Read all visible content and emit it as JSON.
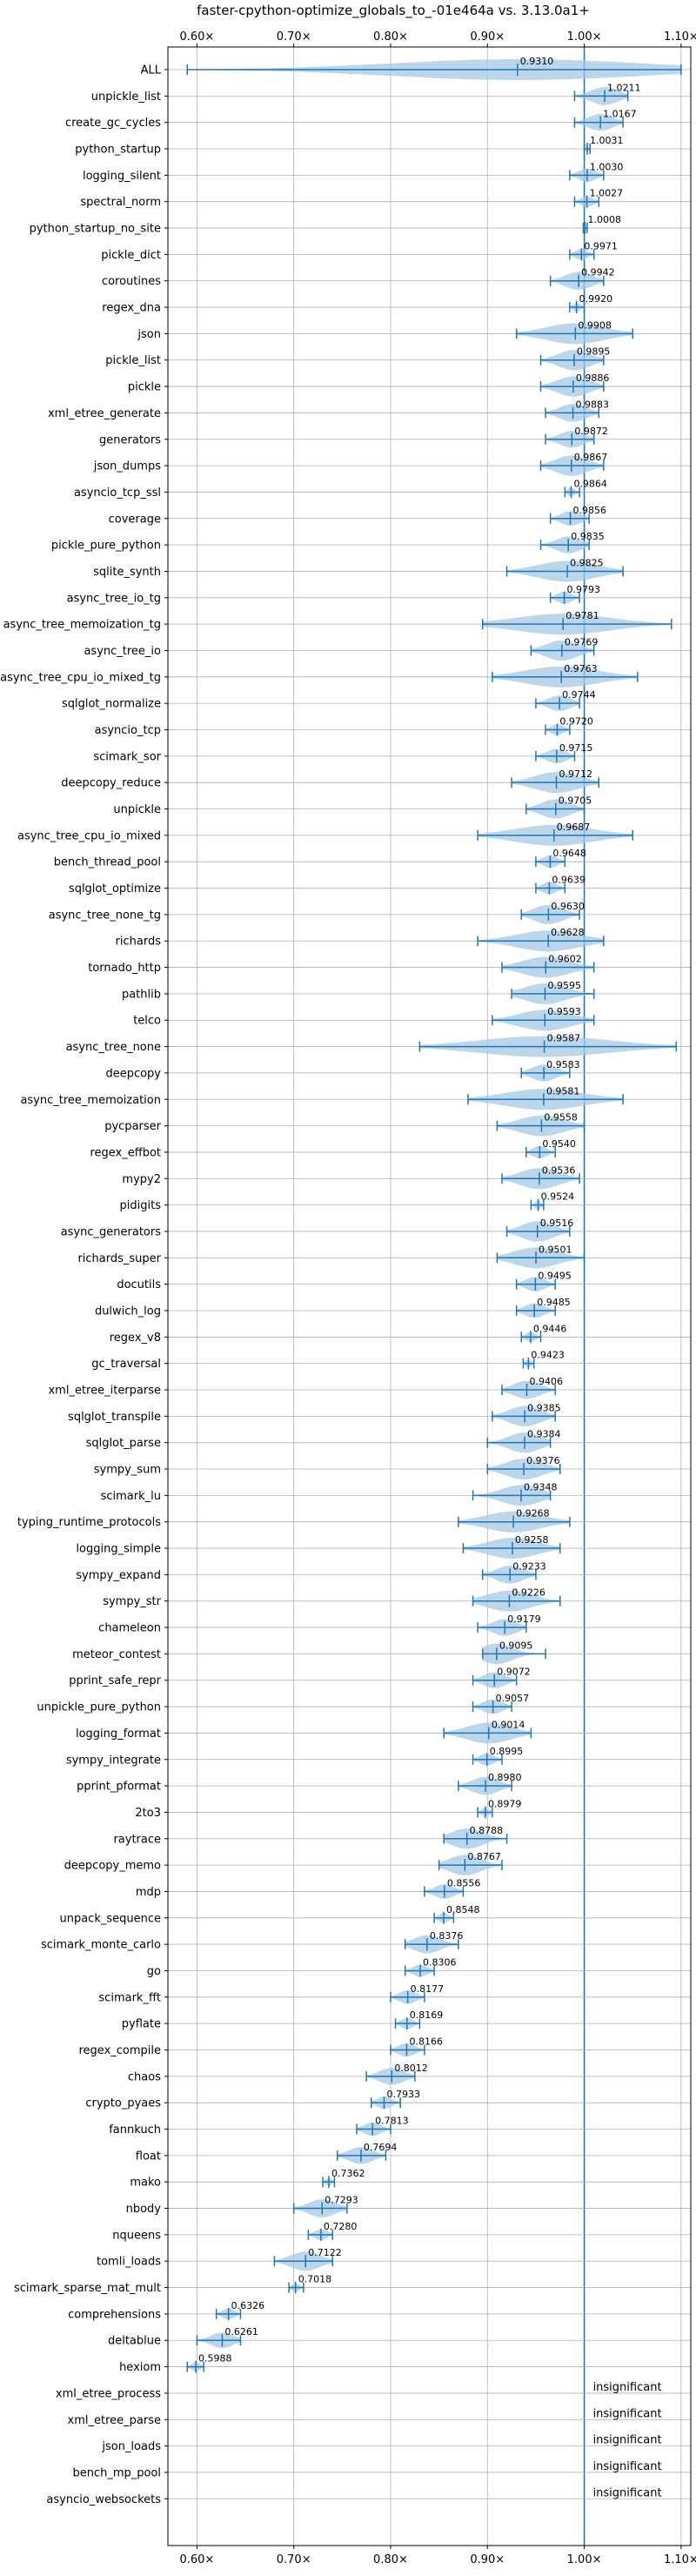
{
  "chart_data": {
    "type": "violin",
    "title": "faster-cpython-optimize_globals_to_-01e464a vs. 3.13.0a1+",
    "xlim": [
      0.57,
      1.11
    ],
    "xticks": [
      0.6,
      0.7,
      0.8,
      0.9,
      1.0,
      1.1
    ],
    "xtick_labels": [
      "0.60×",
      "0.70×",
      "0.80×",
      "0.90×",
      "1.00×",
      "1.10×"
    ],
    "reference_line": 1.0,
    "grid": true,
    "color": "#1f77b4",
    "fill_color": "#a6c8e6",
    "insignificant_label": "insignificant",
    "benchmarks": [
      {
        "name": "ALL",
        "value": 0.931,
        "label": "0.9310",
        "min": 0.59,
        "max": 1.1,
        "spread": 0.035
      },
      {
        "name": "unpickle_list",
        "value": 1.0211,
        "label": "1.0211",
        "min": 0.99,
        "max": 1.045,
        "spread": 0.025
      },
      {
        "name": "create_gc_cycles",
        "value": 1.0167,
        "label": "1.0167",
        "min": 0.99,
        "max": 1.04,
        "spread": 0.025
      },
      {
        "name": "python_startup",
        "value": 1.0031,
        "label": "1.0031",
        "min": 1.0,
        "max": 1.006,
        "spread": 0.004
      },
      {
        "name": "logging_silent",
        "value": 1.003,
        "label": "1.0030",
        "min": 0.985,
        "max": 1.02,
        "spread": 0.015
      },
      {
        "name": "spectral_norm",
        "value": 1.0027,
        "label": "1.0027",
        "min": 0.99,
        "max": 1.015,
        "spread": 0.013
      },
      {
        "name": "python_startup_no_site",
        "value": 1.0008,
        "label": "1.0008",
        "min": 0.999,
        "max": 1.003,
        "spread": 0.003
      },
      {
        "name": "pickle_dict",
        "value": 0.9971,
        "label": "0.9971",
        "min": 0.985,
        "max": 1.01,
        "spread": 0.012
      },
      {
        "name": "coroutines",
        "value": 0.9942,
        "label": "0.9942",
        "min": 0.965,
        "max": 1.02,
        "spread": 0.02
      },
      {
        "name": "regex_dna",
        "value": 0.992,
        "label": "0.9920",
        "min": 0.985,
        "max": 1.0,
        "spread": 0.008
      },
      {
        "name": "json",
        "value": 0.9908,
        "label": "0.9908",
        "min": 0.93,
        "max": 1.05,
        "spread": 0.035
      },
      {
        "name": "pickle_list",
        "value": 0.9895,
        "label": "0.9895",
        "min": 0.955,
        "max": 1.02,
        "spread": 0.025
      },
      {
        "name": "pickle",
        "value": 0.9886,
        "label": "0.9886",
        "min": 0.955,
        "max": 1.02,
        "spread": 0.025
      },
      {
        "name": "xml_etree_generate",
        "value": 0.9883,
        "label": "0.9883",
        "min": 0.96,
        "max": 1.015,
        "spread": 0.02
      },
      {
        "name": "generators",
        "value": 0.9872,
        "label": "0.9872",
        "min": 0.96,
        "max": 1.01,
        "spread": 0.02
      },
      {
        "name": "json_dumps",
        "value": 0.9867,
        "label": "0.9867",
        "min": 0.955,
        "max": 1.02,
        "spread": 0.025
      },
      {
        "name": "asyncio_tcp_ssl",
        "value": 0.9864,
        "label": "0.9864",
        "min": 0.98,
        "max": 0.995,
        "spread": 0.008
      },
      {
        "name": "coverage",
        "value": 0.9856,
        "label": "0.9856",
        "min": 0.965,
        "max": 1.005,
        "spread": 0.02
      },
      {
        "name": "pickle_pure_python",
        "value": 0.9835,
        "label": "0.9835",
        "min": 0.955,
        "max": 1.005,
        "spread": 0.02
      },
      {
        "name": "sqlite_synth",
        "value": 0.9825,
        "label": "0.9825",
        "min": 0.92,
        "max": 1.04,
        "spread": 0.035
      },
      {
        "name": "async_tree_io_tg",
        "value": 0.9793,
        "label": "0.9793",
        "min": 0.965,
        "max": 0.995,
        "spread": 0.012
      },
      {
        "name": "async_tree_memoization_tg",
        "value": 0.9781,
        "label": "0.9781",
        "min": 0.895,
        "max": 1.09,
        "spread": 0.045
      },
      {
        "name": "async_tree_io",
        "value": 0.9769,
        "label": "0.9769",
        "min": 0.945,
        "max": 1.01,
        "spread": 0.025
      },
      {
        "name": "async_tree_cpu_io_mixed_tg",
        "value": 0.9763,
        "label": "0.9763",
        "min": 0.905,
        "max": 1.055,
        "spread": 0.04
      },
      {
        "name": "sqlglot_normalize",
        "value": 0.9744,
        "label": "0.9744",
        "min": 0.95,
        "max": 0.995,
        "spread": 0.02
      },
      {
        "name": "asyncio_tcp",
        "value": 0.972,
        "label": "0.9720",
        "min": 0.96,
        "max": 0.985,
        "spread": 0.012
      },
      {
        "name": "scimark_sor",
        "value": 0.9715,
        "label": "0.9715",
        "min": 0.95,
        "max": 0.99,
        "spread": 0.018
      },
      {
        "name": "deepcopy_reduce",
        "value": 0.9712,
        "label": "0.9712",
        "min": 0.925,
        "max": 1.015,
        "spread": 0.03
      },
      {
        "name": "unpickle",
        "value": 0.9705,
        "label": "0.9705",
        "min": 0.94,
        "max": 1.0,
        "spread": 0.025
      },
      {
        "name": "async_tree_cpu_io_mixed",
        "value": 0.9687,
        "label": "0.9687",
        "min": 0.89,
        "max": 1.05,
        "spread": 0.04
      },
      {
        "name": "bench_thread_pool",
        "value": 0.9648,
        "label": "0.9648",
        "min": 0.95,
        "max": 0.98,
        "spread": 0.014
      },
      {
        "name": "sqlglot_optimize",
        "value": 0.9639,
        "label": "0.9639",
        "min": 0.95,
        "max": 0.98,
        "spread": 0.014
      },
      {
        "name": "async_tree_none_tg",
        "value": 0.963,
        "label": "0.9630",
        "min": 0.935,
        "max": 0.995,
        "spread": 0.022
      },
      {
        "name": "richards",
        "value": 0.9628,
        "label": "0.9628",
        "min": 0.89,
        "max": 1.02,
        "spread": 0.035
      },
      {
        "name": "tornado_http",
        "value": 0.9602,
        "label": "0.9602",
        "min": 0.915,
        "max": 1.01,
        "spread": 0.028
      },
      {
        "name": "pathlib",
        "value": 0.9595,
        "label": "0.9595",
        "min": 0.925,
        "max": 1.01,
        "spread": 0.025
      },
      {
        "name": "telco",
        "value": 0.9593,
        "label": "0.9593",
        "min": 0.905,
        "max": 1.01,
        "spread": 0.03
      },
      {
        "name": "async_tree_none",
        "value": 0.9587,
        "label": "0.9587",
        "min": 0.83,
        "max": 1.095,
        "spread": 0.05
      },
      {
        "name": "deepcopy",
        "value": 0.9583,
        "label": "0.9583",
        "min": 0.935,
        "max": 0.985,
        "spread": 0.018
      },
      {
        "name": "async_tree_memoization",
        "value": 0.9581,
        "label": "0.9581",
        "min": 0.88,
        "max": 1.04,
        "spread": 0.04
      },
      {
        "name": "pycparser",
        "value": 0.9558,
        "label": "0.9558",
        "min": 0.91,
        "max": 1.0,
        "spread": 0.028
      },
      {
        "name": "regex_effbot",
        "value": 0.954,
        "label": "0.9540",
        "min": 0.94,
        "max": 0.97,
        "spread": 0.012
      },
      {
        "name": "mypy2",
        "value": 0.9536,
        "label": "0.9536",
        "min": 0.915,
        "max": 0.995,
        "spread": 0.025
      },
      {
        "name": "pidigits",
        "value": 0.9524,
        "label": "0.9524",
        "min": 0.945,
        "max": 0.958,
        "spread": 0.006
      },
      {
        "name": "async_generators",
        "value": 0.9516,
        "label": "0.9516",
        "min": 0.92,
        "max": 0.985,
        "spread": 0.022
      },
      {
        "name": "richards_super",
        "value": 0.9501,
        "label": "0.9501",
        "min": 0.91,
        "max": 1.0,
        "spread": 0.028
      },
      {
        "name": "docutils",
        "value": 0.9495,
        "label": "0.9495",
        "min": 0.93,
        "max": 0.97,
        "spread": 0.015
      },
      {
        "name": "dulwich_log",
        "value": 0.9485,
        "label": "0.9485",
        "min": 0.93,
        "max": 0.97,
        "spread": 0.015
      },
      {
        "name": "regex_v8",
        "value": 0.9446,
        "label": "0.9446",
        "min": 0.935,
        "max": 0.955,
        "spread": 0.008
      },
      {
        "name": "gc_traversal",
        "value": 0.9423,
        "label": "0.9423",
        "min": 0.937,
        "max": 0.948,
        "spread": 0.005
      },
      {
        "name": "xml_etree_iterparse",
        "value": 0.9406,
        "label": "0.9406",
        "min": 0.915,
        "max": 0.97,
        "spread": 0.02
      },
      {
        "name": "sqlglot_transpile",
        "value": 0.9385,
        "label": "0.9385",
        "min": 0.905,
        "max": 0.97,
        "spread": 0.022
      },
      {
        "name": "sqlglot_parse",
        "value": 0.9384,
        "label": "0.9384",
        "min": 0.9,
        "max": 0.965,
        "spread": 0.022
      },
      {
        "name": "sympy_sum",
        "value": 0.9376,
        "label": "0.9376",
        "min": 0.9,
        "max": 0.975,
        "spread": 0.025
      },
      {
        "name": "scimark_lu",
        "value": 0.9348,
        "label": "0.9348",
        "min": 0.885,
        "max": 0.965,
        "spread": 0.025
      },
      {
        "name": "typing_runtime_protocols",
        "value": 0.9268,
        "label": "0.9268",
        "min": 0.87,
        "max": 0.985,
        "spread": 0.032
      },
      {
        "name": "logging_simple",
        "value": 0.9258,
        "label": "0.9258",
        "min": 0.875,
        "max": 0.975,
        "spread": 0.028
      },
      {
        "name": "sympy_expand",
        "value": 0.9233,
        "label": "0.9233",
        "min": 0.895,
        "max": 0.95,
        "spread": 0.02
      },
      {
        "name": "sympy_str",
        "value": 0.9226,
        "label": "0.9226",
        "min": 0.885,
        "max": 0.975,
        "spread": 0.025
      },
      {
        "name": "chameleon",
        "value": 0.9179,
        "label": "0.9179",
        "min": 0.89,
        "max": 0.94,
        "spread": 0.018
      },
      {
        "name": "meteor_contest",
        "value": 0.9095,
        "label": "0.9095",
        "min": 0.895,
        "max": 0.96,
        "spread": 0.02
      },
      {
        "name": "pprint_safe_repr",
        "value": 0.9072,
        "label": "0.9072",
        "min": 0.885,
        "max": 0.93,
        "spread": 0.018
      },
      {
        "name": "unpickle_pure_python",
        "value": 0.9057,
        "label": "0.9057",
        "min": 0.885,
        "max": 0.925,
        "spread": 0.016
      },
      {
        "name": "logging_format",
        "value": 0.9014,
        "label": "0.9014",
        "min": 0.855,
        "max": 0.945,
        "spread": 0.028
      },
      {
        "name": "sympy_integrate",
        "value": 0.8995,
        "label": "0.8995",
        "min": 0.885,
        "max": 0.915,
        "spread": 0.012
      },
      {
        "name": "pprint_pformat",
        "value": 0.898,
        "label": "0.8980",
        "min": 0.87,
        "max": 0.925,
        "spread": 0.018
      },
      {
        "name": "2to3",
        "value": 0.8979,
        "label": "0.8979",
        "min": 0.89,
        "max": 0.905,
        "spread": 0.008
      },
      {
        "name": "raytrace",
        "value": 0.8788,
        "label": "0.8788",
        "min": 0.855,
        "max": 0.92,
        "spread": 0.022
      },
      {
        "name": "deepcopy_memo",
        "value": 0.8767,
        "label": "0.8767",
        "min": 0.85,
        "max": 0.915,
        "spread": 0.022
      },
      {
        "name": "mdp",
        "value": 0.8556,
        "label": "0.8556",
        "min": 0.835,
        "max": 0.875,
        "spread": 0.016
      },
      {
        "name": "unpack_sequence",
        "value": 0.8548,
        "label": "0.8548",
        "min": 0.845,
        "max": 0.865,
        "spread": 0.009
      },
      {
        "name": "scimark_monte_carlo",
        "value": 0.8376,
        "label": "0.8376",
        "min": 0.815,
        "max": 0.87,
        "spread": 0.02
      },
      {
        "name": "go",
        "value": 0.8306,
        "label": "0.8306",
        "min": 0.815,
        "max": 0.845,
        "spread": 0.013
      },
      {
        "name": "scimark_fft",
        "value": 0.8177,
        "label": "0.8177",
        "min": 0.8,
        "max": 0.835,
        "spread": 0.015
      },
      {
        "name": "pyflate",
        "value": 0.8169,
        "label": "0.8169",
        "min": 0.805,
        "max": 0.83,
        "spread": 0.012
      },
      {
        "name": "regex_compile",
        "value": 0.8166,
        "label": "0.8166",
        "min": 0.8,
        "max": 0.835,
        "spread": 0.013
      },
      {
        "name": "chaos",
        "value": 0.8012,
        "label": "0.8012",
        "min": 0.775,
        "max": 0.825,
        "spread": 0.02
      },
      {
        "name": "crypto_pyaes",
        "value": 0.7933,
        "label": "0.7933",
        "min": 0.78,
        "max": 0.81,
        "spread": 0.013
      },
      {
        "name": "fannkuch",
        "value": 0.7813,
        "label": "0.7813",
        "min": 0.765,
        "max": 0.8,
        "spread": 0.014
      },
      {
        "name": "float",
        "value": 0.7694,
        "label": "0.7694",
        "min": 0.745,
        "max": 0.795,
        "spread": 0.02
      },
      {
        "name": "mako",
        "value": 0.7362,
        "label": "0.7362",
        "min": 0.73,
        "max": 0.742,
        "spread": 0.006
      },
      {
        "name": "nbody",
        "value": 0.7293,
        "label": "0.7293",
        "min": 0.7,
        "max": 0.755,
        "spread": 0.02
      },
      {
        "name": "nqueens",
        "value": 0.728,
        "label": "0.7280",
        "min": 0.715,
        "max": 0.74,
        "spread": 0.012
      },
      {
        "name": "tomli_loads",
        "value": 0.7122,
        "label": "0.7122",
        "min": 0.68,
        "max": 0.74,
        "spread": 0.022
      },
      {
        "name": "scimark_sparse_mat_mult",
        "value": 0.7018,
        "label": "0.7018",
        "min": 0.695,
        "max": 0.71,
        "spread": 0.008
      },
      {
        "name": "comprehensions",
        "value": 0.6326,
        "label": "0.6326",
        "min": 0.62,
        "max": 0.645,
        "spread": 0.012
      },
      {
        "name": "deltablue",
        "value": 0.6261,
        "label": "0.6261",
        "min": 0.6,
        "max": 0.645,
        "spread": 0.017
      },
      {
        "name": "hexiom",
        "value": 0.5988,
        "label": "0.5988",
        "min": 0.59,
        "max": 0.607,
        "spread": 0.008
      },
      {
        "name": "xml_etree_process",
        "insignificant": true
      },
      {
        "name": "xml_etree_parse",
        "insignificant": true
      },
      {
        "name": "json_loads",
        "insignificant": true
      },
      {
        "name": "bench_mp_pool",
        "insignificant": true
      },
      {
        "name": "asyncio_websockets",
        "insignificant": true
      }
    ]
  }
}
